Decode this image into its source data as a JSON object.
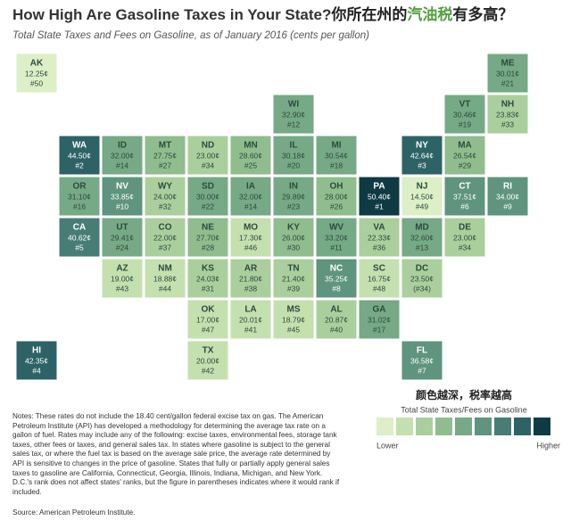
{
  "header": {
    "title": "How High Are Gasoline Taxes in Your State?",
    "title_cn_a": "你所在州的",
    "title_cn_b": "汽油税",
    "title_cn_c": "有多高？",
    "subtitle": "Total State Taxes and Fees on Gasoline, as of January 2016 (cents per gallon)"
  },
  "map": {
    "states": [
      {
        "abbr": "AK",
        "value": 12.25,
        "value_label": "12.25¢",
        "rank": "#50"
      },
      {
        "abbr": "ME",
        "value": 30.01,
        "value_label": "30.01¢",
        "rank": "#21"
      },
      {
        "abbr": "WI",
        "value": 32.9,
        "value_label": "32.90¢",
        "rank": "#12"
      },
      {
        "abbr": "VT",
        "value": 30.46,
        "value_label": "30.46¢",
        "rank": "#19"
      },
      {
        "abbr": "NH",
        "value": 23.83,
        "value_label": "23.83¢",
        "rank": "#33"
      },
      {
        "abbr": "WA",
        "value": 44.5,
        "value_label": "44.50¢",
        "rank": "#2"
      },
      {
        "abbr": "ID",
        "value": 32.0,
        "value_label": "32.00¢",
        "rank": "#14"
      },
      {
        "abbr": "MT",
        "value": 27.75,
        "value_label": "27.75¢",
        "rank": "#27"
      },
      {
        "abbr": "ND",
        "value": 23.0,
        "value_label": "23.00¢",
        "rank": "#34"
      },
      {
        "abbr": "MN",
        "value": 28.6,
        "value_label": "28.60¢",
        "rank": "#25"
      },
      {
        "abbr": "IL",
        "value": 30.18,
        "value_label": "30.18¢",
        "rank": "#20"
      },
      {
        "abbr": "MI",
        "value": 30.54,
        "value_label": "30.54¢",
        "rank": "#18"
      },
      {
        "abbr": "NY",
        "value": 42.64,
        "value_label": "42.64¢",
        "rank": "#3"
      },
      {
        "abbr": "MA",
        "value": 26.54,
        "value_label": "26.54¢",
        "rank": "#29"
      },
      {
        "abbr": "OR",
        "value": 31.1,
        "value_label": "31.10¢",
        "rank": "#16"
      },
      {
        "abbr": "NV",
        "value": 33.85,
        "value_label": "33.85¢",
        "rank": "#10"
      },
      {
        "abbr": "WY",
        "value": 24.0,
        "value_label": "24.00¢",
        "rank": "#32"
      },
      {
        "abbr": "SD",
        "value": 30.0,
        "value_label": "30.00¢",
        "rank": "#22"
      },
      {
        "abbr": "IA",
        "value": 32.0,
        "value_label": "32.00¢",
        "rank": "#14"
      },
      {
        "abbr": "IN",
        "value": 29.89,
        "value_label": "29.89¢",
        "rank": "#23"
      },
      {
        "abbr": "OH",
        "value": 28.0,
        "value_label": "28.00¢",
        "rank": "#26"
      },
      {
        "abbr": "PA",
        "value": 50.4,
        "value_label": "50.40¢",
        "rank": "#1"
      },
      {
        "abbr": "NJ",
        "value": 14.5,
        "value_label": "14.50¢",
        "rank": "#49"
      },
      {
        "abbr": "CT",
        "value": 37.51,
        "value_label": "37.51¢",
        "rank": "#6"
      },
      {
        "abbr": "RI",
        "value": 34.0,
        "value_label": "34.00¢",
        "rank": "#9"
      },
      {
        "abbr": "CA",
        "value": 40.62,
        "value_label": "40.62¢",
        "rank": "#5"
      },
      {
        "abbr": "UT",
        "value": 29.41,
        "value_label": "29.41¢",
        "rank": "#24"
      },
      {
        "abbr": "CO",
        "value": 22.0,
        "value_label": "22.00¢",
        "rank": "#37"
      },
      {
        "abbr": "NE",
        "value": 27.7,
        "value_label": "27.70¢",
        "rank": "#28"
      },
      {
        "abbr": "MO",
        "value": 17.3,
        "value_label": "17.30¢",
        "rank": "#46"
      },
      {
        "abbr": "KY",
        "value": 26.0,
        "value_label": "26.00¢",
        "rank": "#30"
      },
      {
        "abbr": "WV",
        "value": 33.2,
        "value_label": "33.20¢",
        "rank": "#11"
      },
      {
        "abbr": "VA",
        "value": 22.33,
        "value_label": "22.33¢",
        "rank": "#36"
      },
      {
        "abbr": "MD",
        "value": 32.6,
        "value_label": "32.60¢",
        "rank": "#13"
      },
      {
        "abbr": "DE",
        "value": 23.0,
        "value_label": "23.00¢",
        "rank": "#34"
      },
      {
        "abbr": "AZ",
        "value": 19.0,
        "value_label": "19.00¢",
        "rank": "#43"
      },
      {
        "abbr": "NM",
        "value": 18.88,
        "value_label": "18.88¢",
        "rank": "#44"
      },
      {
        "abbr": "KS",
        "value": 24.03,
        "value_label": "24.03¢",
        "rank": "#31"
      },
      {
        "abbr": "AR",
        "value": 21.8,
        "value_label": "21.80¢",
        "rank": "#38"
      },
      {
        "abbr": "TN",
        "value": 21.4,
        "value_label": "21.40¢",
        "rank": "#39"
      },
      {
        "abbr": "NC",
        "value": 35.25,
        "value_label": "35.25¢",
        "rank": "#8"
      },
      {
        "abbr": "SC",
        "value": 16.75,
        "value_label": "16.75¢",
        "rank": "#48"
      },
      {
        "abbr": "DC",
        "value": 23.5,
        "value_label": "23.50¢",
        "rank": "(#34)"
      },
      {
        "abbr": "OK",
        "value": 17.0,
        "value_label": "17.00¢",
        "rank": "#47"
      },
      {
        "abbr": "LA",
        "value": 20.01,
        "value_label": "20.01¢",
        "rank": "#41"
      },
      {
        "abbr": "MS",
        "value": 18.79,
        "value_label": "18.79¢",
        "rank": "#45"
      },
      {
        "abbr": "AL",
        "value": 20.87,
        "value_label": "20.87¢",
        "rank": "#40"
      },
      {
        "abbr": "GA",
        "value": 31.02,
        "value_label": "31.02¢",
        "rank": "#17"
      },
      {
        "abbr": "HI",
        "value": 42.35,
        "value_label": "42.35¢",
        "rank": "#4"
      },
      {
        "abbr": "TX",
        "value": 20.0,
        "value_label": "20.00¢",
        "rank": "#42"
      },
      {
        "abbr": "FL",
        "value": 36.58,
        "value_label": "36.58¢",
        "rank": "#7"
      }
    ]
  },
  "legend": {
    "title_cn": "颜色越深，税率越高",
    "title": "Total State Taxes/Fees on Gasoline",
    "low": "Lower",
    "high": "Higher",
    "colors": [
      "#dcefc6",
      "#c4e0af",
      "#aacf9c",
      "#8fbd8e",
      "#76a985",
      "#5f947f",
      "#487d76",
      "#2d6366",
      "#0e3b43"
    ]
  },
  "notes": "Notes: These rates do not include the 18.40 cent/gallon federal excise tax on gas. The American Petroleum Institute (API) has developed a methodology for determining the average tax rate on a gallon of fuel. Rates may include any of the following: excise taxes, environmental fees, storage tank taxes, other fees or taxes, and general sales tax. In states where gasoline is subject to the general sales tax, or where the fuel tax is based on the average sale price, the average rate determined by API is sensitive to changes in the price of gasoline. States that fully or partially apply general sales taxes to gasoline are California, Connecticut, Georgia, Illinois, Indiana, Michigan, and New York. D.C.'s rank does not affect states' ranks, but the figure in parentheses indicates where it would rank if included.",
  "source": "Source: American Petroleum Institute."
}
